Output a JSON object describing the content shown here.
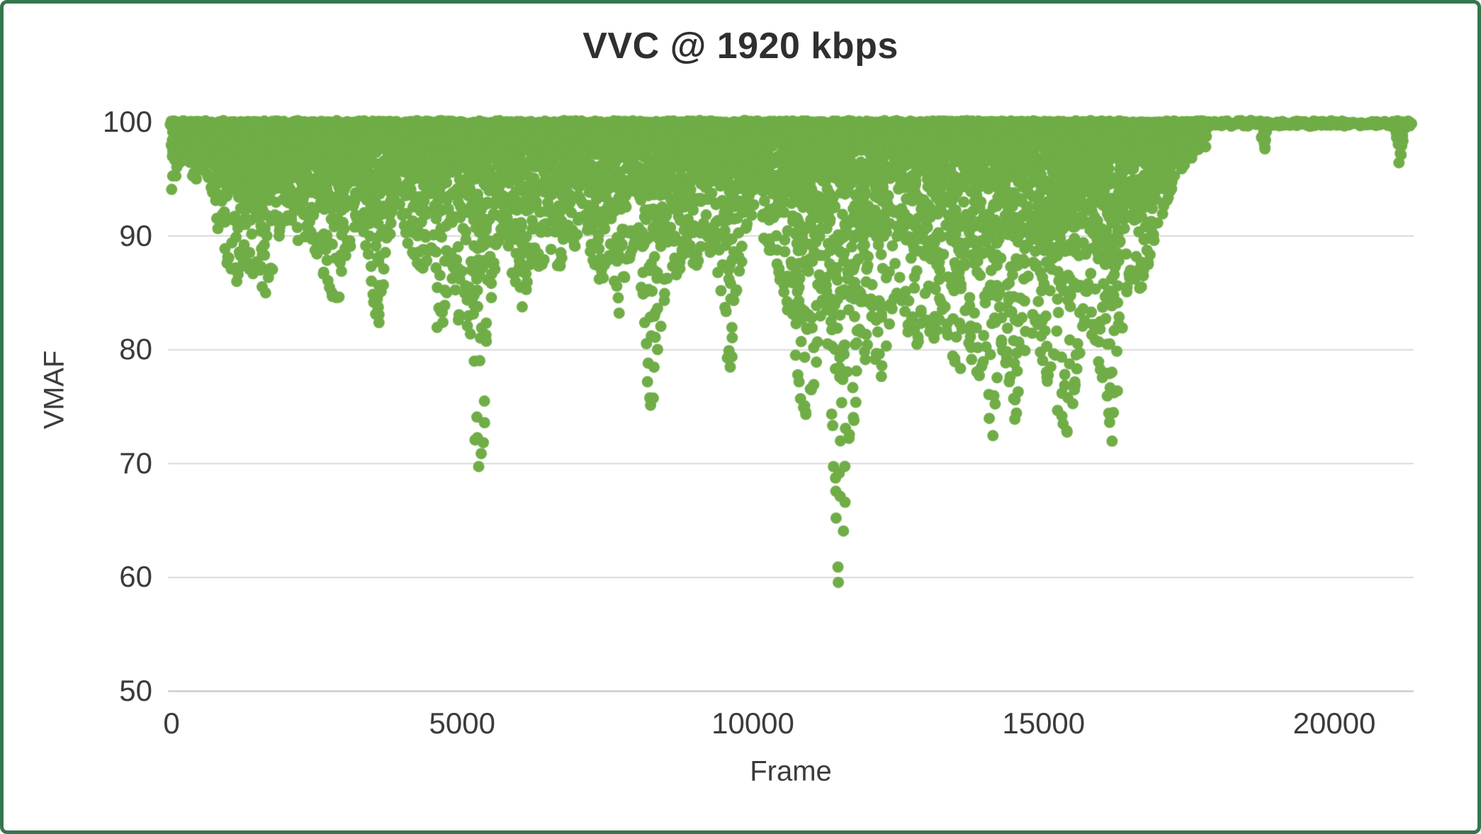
{
  "chart_data": {
    "type": "scatter",
    "title": "VVC @ 1920 kbps",
    "xlabel": "Frame",
    "ylabel": "VMAF",
    "xlim": [
      0,
      21300
    ],
    "ylim": [
      50,
      100
    ],
    "xticks": [
      0,
      5000,
      10000,
      15000,
      20000
    ],
    "yticks": [
      50,
      60,
      70,
      80,
      90,
      100
    ],
    "grid": "horizontal-gridlines",
    "legend": "none",
    "colors": {
      "marker": "#70AD47",
      "gridline": "#D9D9D9",
      "axis_line": "#BFBFBF",
      "text": "#3B3B3B",
      "frame_border": "#35764C",
      "background": "#FFFFFF"
    },
    "series": [
      {
        "name": "VMAF",
        "marker": "circle",
        "color": "#70AD47",
        "upper_bound": 100,
        "pattern": "Per-frame VMAF scores: dense cloud hugging 100 with downward spikes; deepest dip ~58.5 near frame 11500; nearly flat at 100 from frame ~17850 to end with small dips at ~18800 (97) and ~21120 (96.5).",
        "lower_envelope": [
          [
            0,
            94
          ],
          [
            120,
            96
          ],
          [
            250,
            97
          ],
          [
            400,
            95
          ],
          [
            550,
            96.5
          ],
          [
            700,
            94
          ],
          [
            850,
            90
          ],
          [
            1000,
            87
          ],
          [
            1120,
            86
          ],
          [
            1250,
            88
          ],
          [
            1380,
            86.5
          ],
          [
            1500,
            88
          ],
          [
            1620,
            84
          ],
          [
            1750,
            88
          ],
          [
            1900,
            91
          ],
          [
            2050,
            92
          ],
          [
            2200,
            89
          ],
          [
            2350,
            91
          ],
          [
            2500,
            88
          ],
          [
            2650,
            86
          ],
          [
            2800,
            84.5
          ],
          [
            2950,
            85
          ],
          [
            3100,
            90
          ],
          [
            3250,
            92
          ],
          [
            3400,
            88
          ],
          [
            3550,
            82
          ],
          [
            3700,
            89
          ],
          [
            3850,
            94
          ],
          [
            4000,
            91
          ],
          [
            4150,
            88.5
          ],
          [
            4300,
            87
          ],
          [
            4450,
            89
          ],
          [
            4600,
            80.5
          ],
          [
            4750,
            86
          ],
          [
            4900,
            82
          ],
          [
            5050,
            86
          ],
          [
            5150,
            80
          ],
          [
            5250,
            72
          ],
          [
            5330,
            69
          ],
          [
            5450,
            83
          ],
          [
            5600,
            89
          ],
          [
            5750,
            92
          ],
          [
            5900,
            86
          ],
          [
            6050,
            83.5
          ],
          [
            6200,
            88
          ],
          [
            6350,
            87
          ],
          [
            6500,
            90
          ],
          [
            6650,
            87
          ],
          [
            6800,
            91
          ],
          [
            6950,
            89
          ],
          [
            7100,
            92
          ],
          [
            7250,
            88
          ],
          [
            7400,
            85
          ],
          [
            7550,
            90
          ],
          [
            7700,
            83
          ],
          [
            7850,
            88
          ],
          [
            8000,
            90
          ],
          [
            8150,
            80
          ],
          [
            8250,
            75
          ],
          [
            8400,
            82
          ],
          [
            8550,
            88
          ],
          [
            8700,
            86
          ],
          [
            8850,
            90
          ],
          [
            9000,
            87
          ],
          [
            9150,
            91
          ],
          [
            9300,
            88
          ],
          [
            9450,
            86
          ],
          [
            9600,
            78.5
          ],
          [
            9750,
            87
          ],
          [
            9900,
            91
          ],
          [
            10050,
            93
          ],
          [
            10200,
            90
          ],
          [
            10350,
            88
          ],
          [
            10500,
            86
          ],
          [
            10650,
            83
          ],
          [
            10800,
            76
          ],
          [
            10950,
            74
          ],
          [
            11100,
            80
          ],
          [
            11250,
            86
          ],
          [
            11400,
            68
          ],
          [
            11500,
            58.5
          ],
          [
            11620,
            72
          ],
          [
            11750,
            74
          ],
          [
            11900,
            79
          ],
          [
            12050,
            82
          ],
          [
            12200,
            77
          ],
          [
            12350,
            83
          ],
          [
            12500,
            86
          ],
          [
            12650,
            82
          ],
          [
            12800,
            80
          ],
          [
            12950,
            83
          ],
          [
            13100,
            81
          ],
          [
            13250,
            84
          ],
          [
            13400,
            80
          ],
          [
            13550,
            78
          ],
          [
            13700,
            82
          ],
          [
            13850,
            77
          ],
          [
            14000,
            80
          ],
          [
            14100,
            72.5
          ],
          [
            14250,
            81
          ],
          [
            14400,
            78
          ],
          [
            14550,
            73.5
          ],
          [
            14700,
            80
          ],
          [
            14850,
            83
          ],
          [
            15000,
            79
          ],
          [
            15150,
            76
          ],
          [
            15300,
            74
          ],
          [
            15450,
            72.5
          ],
          [
            15600,
            79
          ],
          [
            15750,
            84
          ],
          [
            15900,
            80
          ],
          [
            16050,
            77
          ],
          [
            16200,
            72
          ],
          [
            16350,
            83
          ],
          [
            16500,
            87
          ],
          [
            16650,
            85
          ],
          [
            16800,
            88
          ],
          [
            16950,
            91
          ],
          [
            17100,
            93
          ],
          [
            17250,
            95
          ],
          [
            17400,
            96
          ],
          [
            17550,
            97
          ],
          [
            17700,
            98.5
          ],
          [
            17850,
            100
          ],
          [
            18750,
            100
          ],
          [
            18800,
            97
          ],
          [
            18860,
            100
          ],
          [
            21040,
            100
          ],
          [
            21120,
            96.5
          ],
          [
            21200,
            100
          ],
          [
            21300,
            100
          ]
        ]
      }
    ]
  }
}
